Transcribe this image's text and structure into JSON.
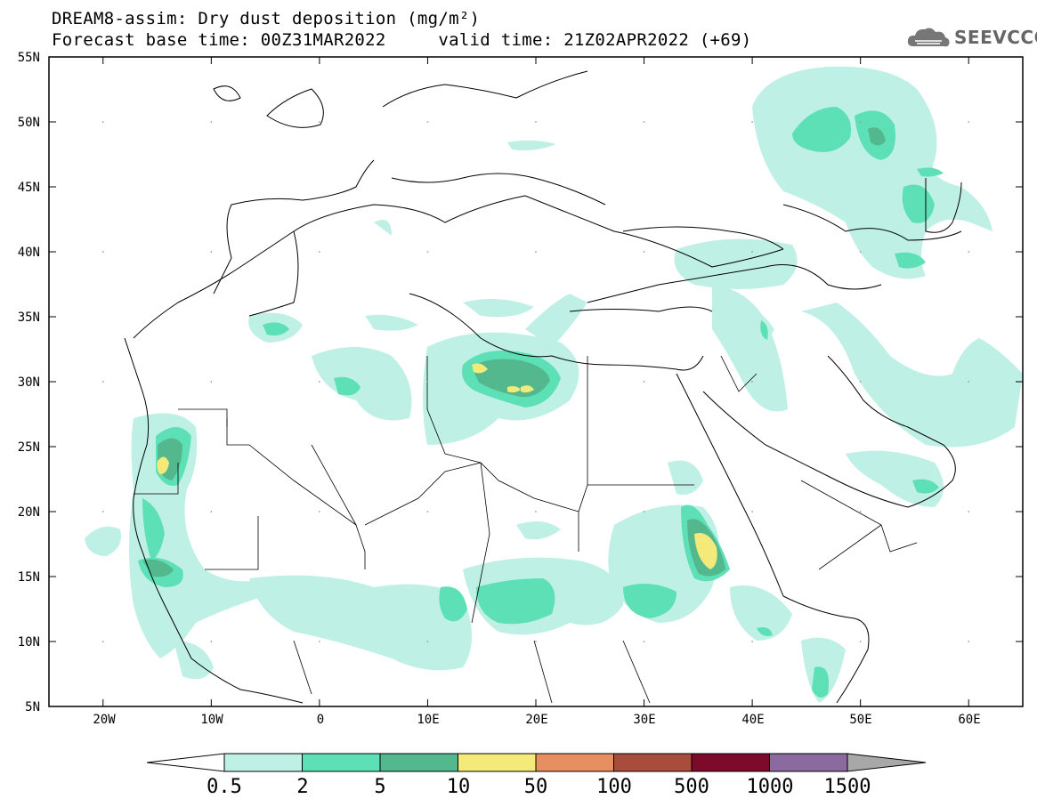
{
  "title_line1": "DREAM8-assim: Dry dust deposition (mg/m²)",
  "title_line2": "Forecast base time: 00Z31MAR2022     valid time: 21Z02APR2022 (+69)",
  "logo_text": "SEEVCCC",
  "logo_icon": "cloud-logo-icon",
  "map": {
    "lon_ticks": [
      "20W",
      "10W",
      "0",
      "10E",
      "20E",
      "30E",
      "40E",
      "50E",
      "60E"
    ],
    "lat_ticks": [
      "55N",
      "50N",
      "45N",
      "40N",
      "35N",
      "30N",
      "25N",
      "20N",
      "15N",
      "10N",
      "5N"
    ],
    "extent": {
      "lon": [
        -25,
        65
      ],
      "lat": [
        5,
        55
      ]
    }
  },
  "colorbar": {
    "labels": [
      "0.5",
      "2",
      "5",
      "10",
      "50",
      "100",
      "500",
      "1000",
      "1500"
    ],
    "colors": [
      "#bff0e6",
      "#5ee0b6",
      "#54b88e",
      "#f4ea7a",
      "#e88f62",
      "#a84c3c",
      "#7d0a2a",
      "#8b6aa0",
      "#a8a8a8"
    ]
  }
}
